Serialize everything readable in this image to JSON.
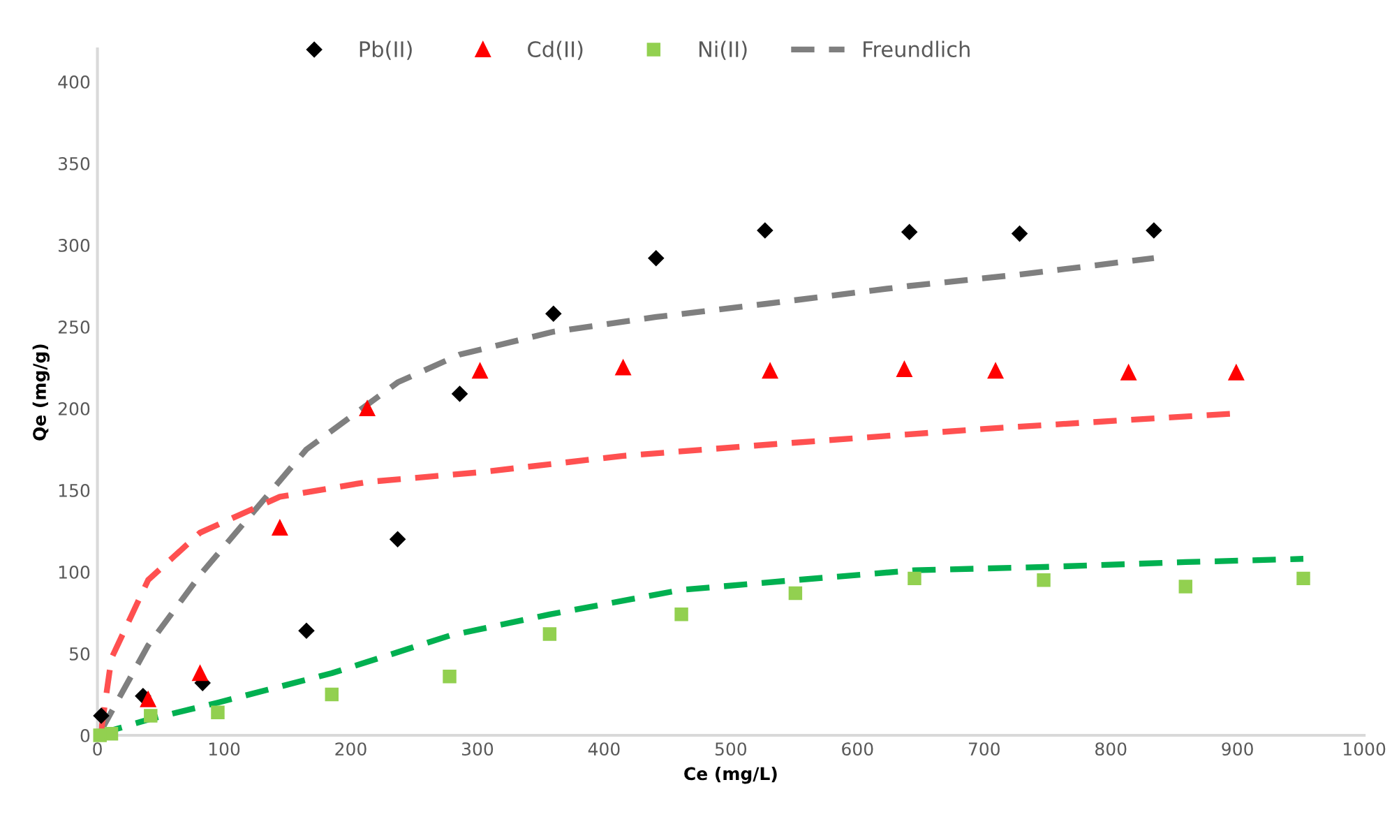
{
  "chart_data": {
    "type": "scatter",
    "xlabel": "Ce (mg/L)",
    "ylabel": "Qe (mg/g)",
    "xlim": [
      0,
      1000
    ],
    "ylim": [
      0,
      420
    ],
    "xticks": [
      0,
      100,
      200,
      300,
      400,
      500,
      600,
      700,
      800,
      900,
      1000
    ],
    "yticks": [
      0,
      50,
      100,
      150,
      200,
      250,
      300,
      350,
      400
    ],
    "grid": false,
    "legend": "top",
    "series": [
      {
        "name": "Pb(II)",
        "marker": "diamond",
        "color": "#000000",
        "x": [
          3,
          36,
          83,
          165,
          237,
          286,
          360,
          441,
          527,
          641,
          728,
          834
        ],
        "values": [
          12,
          24,
          32,
          64,
          120,
          209,
          258,
          292,
          309,
          308,
          307,
          309
        ]
      },
      {
        "name": "Cd(II)",
        "marker": "triangle",
        "color": "#ff0000",
        "x": [
          40,
          81,
          144,
          213,
          302,
          415,
          531,
          637,
          709,
          814,
          899
        ],
        "values": [
          22,
          38,
          127,
          200,
          223,
          225,
          223,
          224,
          223,
          222,
          222
        ]
      },
      {
        "name": "Ni(II)",
        "marker": "square",
        "color": "#92d050",
        "x": [
          2,
          11,
          42,
          95,
          185,
          278,
          357,
          461,
          551,
          645,
          747,
          859,
          952
        ],
        "values": [
          0,
          1,
          12,
          14,
          25,
          36,
          62,
          74,
          87,
          96,
          95,
          91,
          96
        ]
      },
      {
        "name": "Freundlich",
        "type": "line",
        "line_style": "dashed",
        "color": "#7f7f7f",
        "x": [
          3,
          40,
          83,
          165,
          237,
          286,
          360,
          441,
          527,
          641,
          728,
          834
        ],
        "values": [
          3,
          55,
          100,
          175,
          216,
          233,
          247,
          256,
          264,
          275,
          282,
          292
        ]
      },
      {
        "type": "line",
        "line_style": "dashed",
        "color": "#ff5050",
        "x": [
          3,
          11,
          40,
          81,
          144,
          213,
          302,
          415,
          531,
          637,
          709,
          814,
          899
        ],
        "values": [
          3,
          47,
          95,
          124,
          146,
          155,
          161,
          171,
          178,
          184,
          188,
          193,
          197
        ]
      },
      {
        "type": "line",
        "line_style": "dashed",
        "color": "#00b050",
        "x": [
          2,
          11,
          42,
          95,
          185,
          278,
          357,
          461,
          551,
          645,
          747,
          859,
          952
        ],
        "values": [
          0,
          3,
          10,
          20,
          38,
          61,
          74,
          89,
          95,
          101,
          103,
          106,
          108
        ]
      }
    ]
  }
}
